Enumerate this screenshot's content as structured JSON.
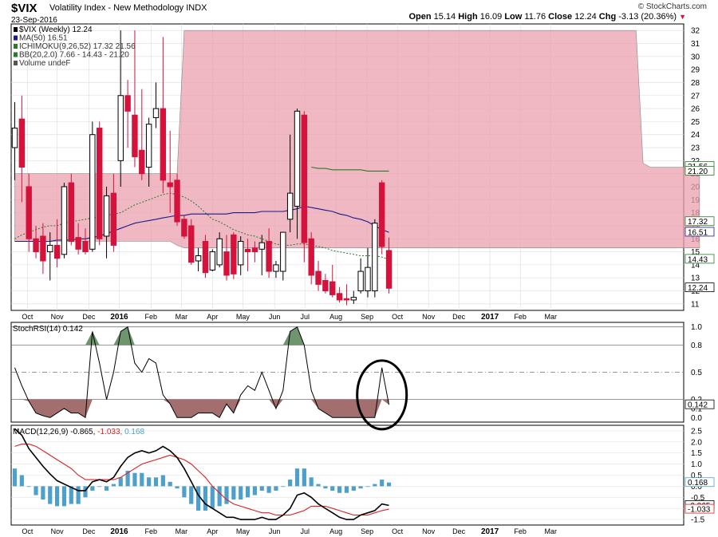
{
  "header": {
    "symbol": "$VIX",
    "name": "Volatility Index - New Methodology",
    "exchange": "INDX",
    "date": "23-Sep-2016",
    "brand": "© StockCharts.com",
    "open_label": "Open",
    "open": "15.14",
    "high_label": "High",
    "high": "16.09",
    "low_label": "Low",
    "low": "11.76",
    "close_label": "Close",
    "close": "12.24",
    "chg_label": "Chg",
    "chg": "-3.13 (20.36%)"
  },
  "colors": {
    "up": "#000000",
    "down": "#d4123c",
    "cloud": "#e9a0ad",
    "cloud_green": "#8ccf8c",
    "ma": "#1a1a8c",
    "bb": "#2a7a2a",
    "ichimoku": "#2a7a2a",
    "macd_line": "#000000",
    "macd_signal": "#e02020",
    "macd_hist": "#4ea0cc",
    "rsi_fill_low": "#8b4a4a",
    "rsi_fill_high": "#4a7a4a"
  },
  "chart_data": [
    {
      "type": "candlestick",
      "title": "$VIX (Weekly) 12.24",
      "legend": [
        {
          "label": "$VIX (Weekly) 12.24",
          "color": "#000000"
        },
        {
          "label": "MA(50) 16.51",
          "color": "#1a1a8c"
        },
        {
          "label": "ICHIMOKU(9,26,52) 17.32 21.56",
          "color": "#2a7a2a"
        },
        {
          "label": "BB(20,2.0) 7.66 - 14.43 - 21.20",
          "color": "#2a7a2a"
        },
        {
          "label": "Volume undeF",
          "color": "#555555"
        }
      ],
      "ylim": [
        10.5,
        32.5
      ],
      "yticks": [
        11,
        12,
        13,
        14,
        15,
        16,
        17,
        18,
        19,
        20,
        21,
        22,
        23,
        24,
        25,
        26,
        27,
        28,
        29,
        30,
        31,
        32
      ],
      "right_labels": [
        {
          "value": 21.56,
          "text": "21.56",
          "color": "#2a7a2a"
        },
        {
          "value": 21.2,
          "text": "21.20",
          "color": "#2a7a2a"
        },
        {
          "value": 17.32,
          "text": "17.32",
          "color": "#2a7a2a"
        },
        {
          "value": 16.51,
          "text": "16.51",
          "color": "#1a1a8c"
        },
        {
          "value": 14.43,
          "text": "14.43",
          "color": "#2a7a2a"
        },
        {
          "value": 12.24,
          "text": "12.24",
          "color": "#000000"
        }
      ],
      "candles": [
        {
          "o": 23.0,
          "h": 26.5,
          "l": 20.5,
          "c": 24.5
        },
        {
          "o": 25.2,
          "h": 27.0,
          "l": 18.8,
          "c": 21.5
        },
        {
          "o": 20.0,
          "h": 21.0,
          "l": 15.0,
          "c": 16.0
        },
        {
          "o": 16.0,
          "h": 17.0,
          "l": 14.5,
          "c": 15.0
        },
        {
          "o": 16.2,
          "h": 17.2,
          "l": 13.3,
          "c": 14.3
        },
        {
          "o": 15.0,
          "h": 16.5,
          "l": 12.8,
          "c": 15.5
        },
        {
          "o": 15.5,
          "h": 17.5,
          "l": 13.8,
          "c": 14.5
        },
        {
          "o": 14.8,
          "h": 20.3,
          "l": 14.5,
          "c": 20.0
        },
        {
          "o": 20.3,
          "h": 21.0,
          "l": 15.5,
          "c": 15.8
        },
        {
          "o": 16.1,
          "h": 17.2,
          "l": 14.8,
          "c": 15.2
        },
        {
          "o": 15.8,
          "h": 16.8,
          "l": 14.8,
          "c": 15.0
        },
        {
          "o": 15.2,
          "h": 25.0,
          "l": 15.0,
          "c": 24.0
        },
        {
          "o": 24.5,
          "h": 25.0,
          "l": 15.5,
          "c": 16.0
        },
        {
          "o": 16.2,
          "h": 20.0,
          "l": 14.5,
          "c": 19.3
        },
        {
          "o": 19.5,
          "h": 21.0,
          "l": 15.0,
          "c": 15.5
        },
        {
          "o": 22.0,
          "h": 32.0,
          "l": 20.0,
          "c": 27.0
        },
        {
          "o": 27.0,
          "h": 28.2,
          "l": 23.0,
          "c": 25.8
        },
        {
          "o": 25.5,
          "h": 32.0,
          "l": 21.5,
          "c": 22.3
        },
        {
          "o": 22.8,
          "h": 27.5,
          "l": 20.5,
          "c": 21.0
        },
        {
          "o": 21.5,
          "h": 25.3,
          "l": 20.0,
          "c": 24.8
        },
        {
          "o": 25.3,
          "h": 28.0,
          "l": 24.5,
          "c": 26.0
        },
        {
          "o": 26.0,
          "h": 31.5,
          "l": 19.5,
          "c": 20.5
        },
        {
          "o": 20.3,
          "h": 24.3,
          "l": 18.0,
          "c": 20.0
        },
        {
          "o": 20.5,
          "h": 21.0,
          "l": 17.0,
          "c": 17.3
        },
        {
          "o": 17.5,
          "h": 17.8,
          "l": 16.0,
          "c": 16.2
        },
        {
          "o": 17.0,
          "h": 17.5,
          "l": 14.0,
          "c": 14.2
        },
        {
          "o": 14.3,
          "h": 15.3,
          "l": 13.5,
          "c": 14.7
        },
        {
          "o": 15.8,
          "h": 16.3,
          "l": 13.0,
          "c": 13.4
        },
        {
          "o": 13.6,
          "h": 15.2,
          "l": 13.5,
          "c": 15.0
        },
        {
          "o": 14.0,
          "h": 16.5,
          "l": 13.8,
          "c": 16.0
        },
        {
          "o": 15.0,
          "h": 16.3,
          "l": 12.8,
          "c": 13.2
        },
        {
          "o": 16.3,
          "h": 16.5,
          "l": 12.9,
          "c": 13.3
        },
        {
          "o": 14.0,
          "h": 16.2,
          "l": 13.2,
          "c": 15.8
        },
        {
          "o": 15.2,
          "h": 16.0,
          "l": 13.5,
          "c": 15.0
        },
        {
          "o": 15.3,
          "h": 15.8,
          "l": 14.2,
          "c": 15.0
        },
        {
          "o": 15.2,
          "h": 16.3,
          "l": 13.2,
          "c": 15.7
        },
        {
          "o": 15.8,
          "h": 16.8,
          "l": 13.0,
          "c": 13.5
        },
        {
          "o": 13.5,
          "h": 14.3,
          "l": 13.0,
          "c": 14.0
        },
        {
          "o": 13.5,
          "h": 16.5,
          "l": 12.8,
          "c": 16.5
        },
        {
          "o": 17.5,
          "h": 24.0,
          "l": 16.5,
          "c": 19.5
        },
        {
          "o": 18.5,
          "h": 26.0,
          "l": 16.0,
          "c": 25.8
        },
        {
          "o": 25.5,
          "h": 25.8,
          "l": 14.2,
          "c": 15.7
        },
        {
          "o": 16.0,
          "h": 16.5,
          "l": 12.5,
          "c": 13.2
        },
        {
          "o": 13.5,
          "h": 14.3,
          "l": 12.0,
          "c": 12.5
        },
        {
          "o": 12.8,
          "h": 13.3,
          "l": 11.8,
          "c": 12.0
        },
        {
          "o": 12.7,
          "h": 14.0,
          "l": 11.5,
          "c": 11.7
        },
        {
          "o": 11.8,
          "h": 12.3,
          "l": 11.1,
          "c": 11.3
        },
        {
          "o": 11.4,
          "h": 12.5,
          "l": 10.9,
          "c": 11.3
        },
        {
          "o": 11.3,
          "h": 12.0,
          "l": 11.0,
          "c": 11.5
        },
        {
          "o": 12.0,
          "h": 14.5,
          "l": 11.8,
          "c": 13.5
        },
        {
          "o": 12.0,
          "h": 15.3,
          "l": 11.5,
          "c": 13.8
        },
        {
          "o": 12.0,
          "h": 17.5,
          "l": 11.5,
          "c": 17.2
        },
        {
          "o": 20.3,
          "h": 20.5,
          "l": 14.8,
          "c": 15.4
        },
        {
          "o": 15.1,
          "h": 16.1,
          "l": 11.8,
          "c": 12.2
        }
      ],
      "ma50": [
        15.8,
        15.8,
        15.8,
        15.8,
        15.8,
        15.8,
        15.9,
        15.9,
        15.9,
        16.0,
        16.0,
        16.1,
        16.2,
        16.4,
        16.6,
        16.8,
        17.0,
        17.2,
        17.3,
        17.4,
        17.5,
        17.6,
        17.7,
        17.8,
        17.8,
        17.9,
        17.9,
        17.9,
        17.9,
        17.9,
        17.9,
        18.0,
        18.0,
        18.0,
        18.0,
        18.1,
        18.1,
        18.1,
        18.1,
        18.2,
        18.3,
        18.5,
        18.4,
        18.3,
        18.2,
        18.1,
        17.9,
        17.8,
        17.6,
        17.5,
        17.3,
        17.0,
        16.7,
        16.5
      ],
      "bb_mid": [
        16.0,
        16.3,
        16.5,
        16.7,
        16.9,
        17.0,
        17.0,
        17.2,
        17.3,
        17.4,
        17.5,
        17.6,
        17.7,
        17.8,
        17.9,
        18.0,
        18.3,
        18.6,
        18.8,
        19.0,
        19.2,
        19.4,
        19.5,
        19.4,
        19.2,
        18.9,
        18.5,
        18.0,
        17.5,
        17.3,
        17.0,
        16.7,
        16.5,
        16.3,
        16.2,
        16.0,
        15.8,
        15.6,
        15.5,
        15.5,
        15.6,
        15.6,
        15.5,
        15.4,
        15.3,
        15.1,
        15.0,
        14.9,
        14.8,
        14.7,
        14.7,
        14.7,
        14.6,
        14.4
      ],
      "bb_upper": [
        null,
        null,
        null,
        null,
        null,
        null,
        null,
        null,
        null,
        null,
        null,
        null,
        null,
        null,
        null,
        null,
        null,
        null,
        null,
        null,
        null,
        null,
        null,
        null,
        null,
        null,
        null,
        null,
        null,
        null,
        null,
        null,
        null,
        null,
        null,
        null,
        null,
        null,
        null,
        null,
        null,
        null,
        21.5,
        21.4,
        21.4,
        21.3,
        21.3,
        21.3,
        21.3,
        21.3,
        21.2,
        21.2,
        21.2,
        21.2
      ],
      "cloud_top": [
        21.0,
        21.0,
        21.0,
        21.0,
        21.0,
        21.0,
        21.0,
        21.0,
        21.0,
        21.0,
        21.0,
        21.0,
        21.0,
        21.0,
        21.0,
        21.0,
        21.0,
        21.0,
        21.0,
        21.0,
        21.0,
        21.0,
        21.0,
        21.0,
        32.0,
        32.0,
        32.0,
        32.0,
        32.0,
        32.0,
        32.0,
        32.0,
        32.0,
        32.0,
        32.0,
        32.0,
        32.0,
        32.0,
        32.0,
        32.0,
        32.0,
        32.0,
        32.0,
        32.0,
        32.0,
        32.0,
        32.0,
        32.0,
        32.0,
        32.0,
        32.0,
        32.0,
        32.0,
        32.0,
        32.0,
        32.0,
        32.0,
        32.0,
        32.0,
        32.0,
        32.0,
        32.0,
        32.0,
        32.0,
        32.0,
        32.0,
        32.0,
        32.0,
        32.0,
        32.0,
        32.0,
        32.0,
        32.0,
        32.0,
        32.0,
        32.0,
        32.0,
        32.0,
        32.0,
        32.0,
        32.0,
        32.0,
        32.0,
        32.0,
        32.0,
        32.0,
        32.0,
        32.0,
        32.0,
        21.8,
        21.5,
        21.5,
        21.5,
        21.5,
        21.5,
        21.5,
        21.5,
        21.5
      ],
      "cloud_bottom": [
        15.8,
        15.8,
        15.8,
        15.8,
        15.8,
        15.8,
        15.8,
        15.8,
        15.8,
        15.8,
        15.8,
        15.8,
        15.8,
        15.8,
        15.8,
        15.8,
        15.8,
        15.8,
        15.8,
        15.8,
        15.8,
        15.8,
        15.8,
        15.5,
        15.3,
        15.3,
        15.3,
        15.3,
        15.3,
        15.3,
        15.3,
        15.3,
        15.3,
        15.3,
        15.3,
        15.3,
        15.3,
        15.3,
        15.3,
        15.3,
        15.3,
        15.3,
        15.3,
        15.3,
        15.3,
        15.3,
        15.3,
        15.3,
        15.3,
        15.3,
        15.3,
        15.3,
        15.3,
        15.3,
        15.3,
        15.3,
        15.3,
        15.3,
        15.3,
        15.3,
        15.3,
        15.3,
        15.3,
        15.3,
        15.3,
        15.3,
        15.3,
        15.3,
        15.3,
        15.3,
        15.3,
        15.3,
        15.3,
        15.3,
        15.3,
        15.3,
        15.3,
        15.3,
        15.3,
        15.3,
        15.3,
        15.3,
        15.3,
        15.3,
        15.3,
        15.3,
        15.3,
        15.3,
        15.3,
        15.3,
        15.3,
        15.3,
        15.3,
        15.3,
        15.3,
        15.3,
        15.3,
        15.3
      ]
    },
    {
      "type": "line",
      "title": "StochRSI(14) 0.142",
      "ylim": [
        -0.05,
        1.05
      ],
      "yticks": [
        0.0,
        0.1,
        0.2,
        0.5,
        0.8,
        1.0
      ],
      "tick_labels": [
        "0.0",
        "0.1",
        "0.2",
        "0.5",
        "0.8",
        "1.0"
      ],
      "last_label": "0.142",
      "values": [
        0.55,
        0.35,
        0.18,
        0.05,
        0.02,
        0.0,
        0.05,
        0.1,
        0.05,
        0.05,
        0.0,
        0.95,
        0.6,
        0.2,
        0.5,
        0.95,
        1.0,
        0.6,
        0.5,
        0.65,
        0.6,
        0.25,
        0.15,
        0.0,
        0.0,
        0.0,
        0.05,
        0.05,
        0.05,
        0.0,
        0.15,
        0.05,
        0.25,
        0.35,
        0.3,
        0.5,
        0.3,
        0.1,
        0.3,
        0.95,
        1.0,
        0.8,
        0.3,
        0.1,
        0.05,
        0.0,
        0.0,
        0.0,
        0.0,
        0.0,
        0.0,
        0.0,
        0.55,
        0.142
      ]
    },
    {
      "type": "bar+line",
      "title": "MACD(12,26,9)",
      "macd_value": "-0.865",
      "signal_value": "-1.033",
      "hist_value": "0.168",
      "ylim": [
        -1.75,
        2.75
      ],
      "yticks": [
        -1.5,
        -1.0,
        -0.5,
        0.0,
        0.5,
        1.0,
        1.5,
        2.0,
        2.5
      ],
      "tick_labels": [
        "-1.5",
        "-1.0",
        "-0.5",
        "0.0",
        "0.5",
        "1.0",
        "1.5",
        "2.0",
        "2.5"
      ],
      "right_labels": [
        {
          "value": 0.168,
          "text": "0.168",
          "color": "#4ea0cc"
        },
        {
          "value": -0.865,
          "text": "-0.865",
          "color": "#000000"
        },
        {
          "value": -1.033,
          "text": "-1.033",
          "color": "#e02020"
        }
      ],
      "macd": [
        2.6,
        2.3,
        1.7,
        1.3,
        0.9,
        0.55,
        0.25,
        0.1,
        -0.05,
        -0.2,
        -0.2,
        0.2,
        0.3,
        0.2,
        0.4,
        0.9,
        1.3,
        1.5,
        1.6,
        1.5,
        1.6,
        1.8,
        1.6,
        1.3,
        0.8,
        0.2,
        -0.4,
        -0.8,
        -1.0,
        -1.2,
        -1.4,
        -1.4,
        -1.5,
        -1.5,
        -1.5,
        -1.4,
        -1.5,
        -1.5,
        -1.3,
        -1.0,
        -0.4,
        -0.3,
        -0.5,
        -0.8,
        -1.0,
        -1.2,
        -1.4,
        -1.5,
        -1.5,
        -1.3,
        -1.2,
        -1.1,
        -0.8,
        -0.865
      ],
      "signal": [
        1.8,
        1.9,
        1.9,
        1.8,
        1.6,
        1.4,
        1.2,
        1.0,
        0.8,
        0.5,
        0.3,
        0.3,
        0.3,
        0.3,
        0.3,
        0.4,
        0.6,
        0.8,
        1.0,
        1.1,
        1.2,
        1.3,
        1.4,
        1.3,
        1.2,
        1.0,
        0.7,
        0.4,
        0.0,
        -0.3,
        -0.6,
        -0.8,
        -0.9,
        -1.0,
        -1.1,
        -1.2,
        -1.2,
        -1.3,
        -1.3,
        -1.3,
        -1.2,
        -1.1,
        -0.9,
        -0.9,
        -0.9,
        -1.0,
        -1.1,
        -1.2,
        -1.3,
        -1.3,
        -1.3,
        -1.2,
        -1.1,
        -1.033
      ],
      "hist": [
        0.8,
        0.5,
        0.0,
        -0.4,
        -0.6,
        -0.8,
        -0.9,
        -0.9,
        -0.8,
        -0.8,
        -0.5,
        -0.2,
        0.0,
        -0.2,
        0.1,
        0.4,
        0.7,
        0.6,
        0.6,
        0.4,
        0.4,
        0.5,
        0.2,
        -0.1,
        -0.5,
        -0.8,
        -1.1,
        -1.1,
        -1.0,
        -0.9,
        -0.8,
        -0.6,
        -0.6,
        -0.5,
        -0.4,
        -0.2,
        -0.3,
        -0.2,
        0.0,
        0.3,
        0.8,
        0.8,
        0.4,
        0.1,
        -0.1,
        -0.2,
        -0.3,
        -0.3,
        -0.2,
        -0.1,
        0.0,
        0.1,
        0.3,
        0.168
      ]
    }
  ],
  "xaxis": {
    "months": [
      {
        "label": "Oct",
        "week": 1.8,
        "year": false
      },
      {
        "label": "Nov",
        "week": 6.0,
        "year": false
      },
      {
        "label": "Dec",
        "week": 10.5,
        "year": false
      },
      {
        "label": "2016",
        "week": 14.8,
        "year": true
      },
      {
        "label": "Feb",
        "week": 19.3,
        "year": false
      },
      {
        "label": "Mar",
        "week": 23.6,
        "year": false
      },
      {
        "label": "Apr",
        "week": 28.0,
        "year": false
      },
      {
        "label": "May",
        "week": 32.3,
        "year": false
      },
      {
        "label": "Jun",
        "week": 36.8,
        "year": false
      },
      {
        "label": "Jul",
        "week": 41.1,
        "year": false
      },
      {
        "label": "Aug",
        "week": 45.5,
        "year": false
      },
      {
        "label": "Sep",
        "week": 49.9,
        "year": false
      },
      {
        "label": "Oct",
        "week": 54.2,
        "year": false
      },
      {
        "label": "Nov",
        "week": 58.6,
        "year": false
      },
      {
        "label": "Dec",
        "week": 62.9,
        "year": false
      },
      {
        "label": "2017",
        "week": 67.3,
        "year": true
      },
      {
        "label": "Feb",
        "week": 71.6,
        "year": false
      },
      {
        "label": "Mar",
        "week": 75.9,
        "year": false
      }
    ]
  }
}
